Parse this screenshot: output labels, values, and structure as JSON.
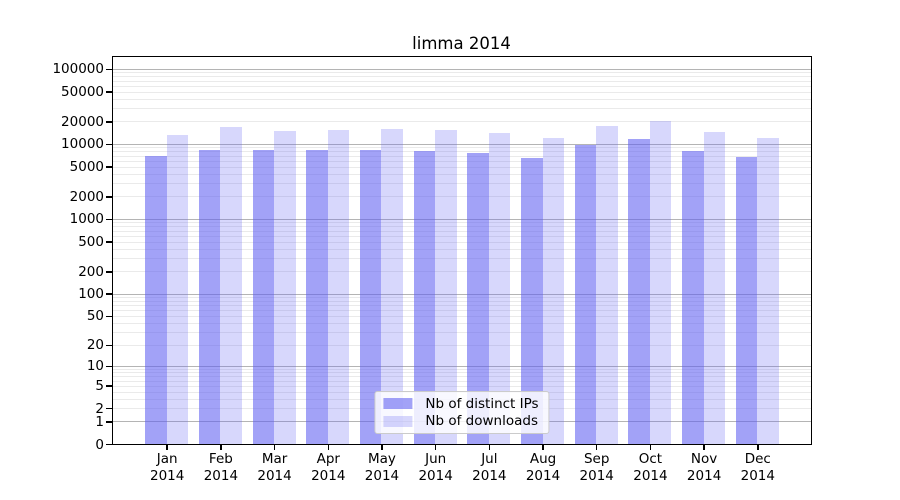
{
  "chart_data": {
    "type": "bar",
    "title": "limma 2014",
    "categories": [
      "Jan",
      "Feb",
      "Mar",
      "Apr",
      "May",
      "Jun",
      "Jul",
      "Aug",
      "Sep",
      "Oct",
      "Nov",
      "Dec"
    ],
    "x_year": "2014",
    "series": [
      {
        "name": "Nb of distinct IPs",
        "color": "rgba(95,95,242,0.58)",
        "values": [
          7000,
          8200,
          8300,
          8300,
          8300,
          8100,
          7700,
          6500,
          9700,
          11700,
          8000,
          6800
        ]
      },
      {
        "name": "Nb of downloads",
        "color": "rgba(95,95,242,0.25)",
        "values": [
          13200,
          17000,
          15100,
          15500,
          15900,
          15400,
          13900,
          11900,
          17500,
          20500,
          14600,
          11900
        ]
      }
    ],
    "y_scale": "log10(value+1)",
    "y_ticks": [
      0,
      1,
      2,
      5,
      10,
      20,
      50,
      100,
      200,
      500,
      1000,
      2000,
      5000,
      10000,
      20000,
      50000,
      100000
    ],
    "ylim": [
      0,
      150000
    ],
    "grid": {
      "orientation": "horizontal",
      "minor_color": "#eaeaea",
      "major_color": "#b4b4b4",
      "minor_at": "2-9 multiples of each decade",
      "major_at": "powers of 10"
    },
    "legend": {
      "position": "lower center inside plot"
    }
  }
}
